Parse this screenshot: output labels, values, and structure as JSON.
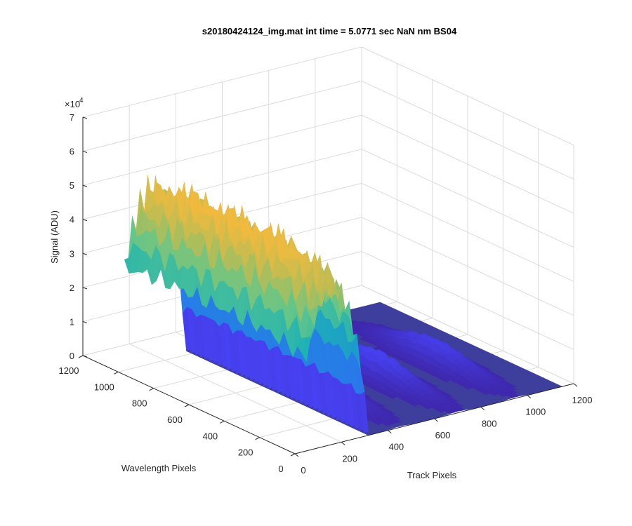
{
  "chart_data": {
    "type": "surface",
    "title": "s20180424124_img.mat int time = 5.0771 sec  NaN nm BS04",
    "xlabel": "Track Pixels",
    "ylabel": "Wavelength Pixels",
    "zlabel": "Signal (ADU)",
    "z_exponent": "4",
    "x_range": [
      0,
      1200
    ],
    "y_range": [
      0,
      1200
    ],
    "z_range": [
      0,
      70000
    ],
    "x_ticks": [
      {
        "label": "0",
        "value": 0
      },
      {
        "label": "200",
        "value": 200
      },
      {
        "label": "400",
        "value": 400
      },
      {
        "label": "600",
        "value": 600
      },
      {
        "label": "800",
        "value": 800
      },
      {
        "label": "1000",
        "value": 1000
      },
      {
        "label": "1200",
        "value": 1200
      }
    ],
    "y_ticks": [
      {
        "label": "0",
        "value": 0
      },
      {
        "label": "200",
        "value": 200
      },
      {
        "label": "400",
        "value": 400
      },
      {
        "label": "600",
        "value": 600
      },
      {
        "label": "800",
        "value": 800
      },
      {
        "label": "1000",
        "value": 1000
      },
      {
        "label": "1200",
        "value": 1200
      }
    ],
    "z_ticks": [
      {
        "label": "0",
        "value": 0
      },
      {
        "label": "1",
        "value": 10000
      },
      {
        "label": "2",
        "value": 20000
      },
      {
        "label": "3",
        "value": 30000
      },
      {
        "label": "4",
        "value": 40000
      },
      {
        "label": "5",
        "value": 50000
      },
      {
        "label": "6",
        "value": 60000
      },
      {
        "label": "7",
        "value": 70000
      }
    ],
    "grid": true,
    "colormap": [
      "#3e26a8",
      "#4743f7",
      "#2f6ff2",
      "#1b91d6",
      "#1fb2b2",
      "#62c68a",
      "#b8bd55",
      "#f5ba3c",
      "#f9e41c"
    ],
    "surface_color_floor": "#3e3f9c",
    "surface_x_range": [
      50,
      1150
    ],
    "surface_y_range": [
      0,
      1030
    ],
    "peaks": [
      {
        "x_center": 160,
        "y_profile": "flat",
        "amplitude": 58000
      },
      {
        "x_center": 450,
        "y_profile": "hump",
        "amplitude": 6000
      },
      {
        "x_center": 700,
        "y_profile": "hump",
        "amplitude": 8000
      },
      {
        "x_center": 950,
        "y_profile": "hump",
        "amplitude": 7000
      }
    ]
  }
}
